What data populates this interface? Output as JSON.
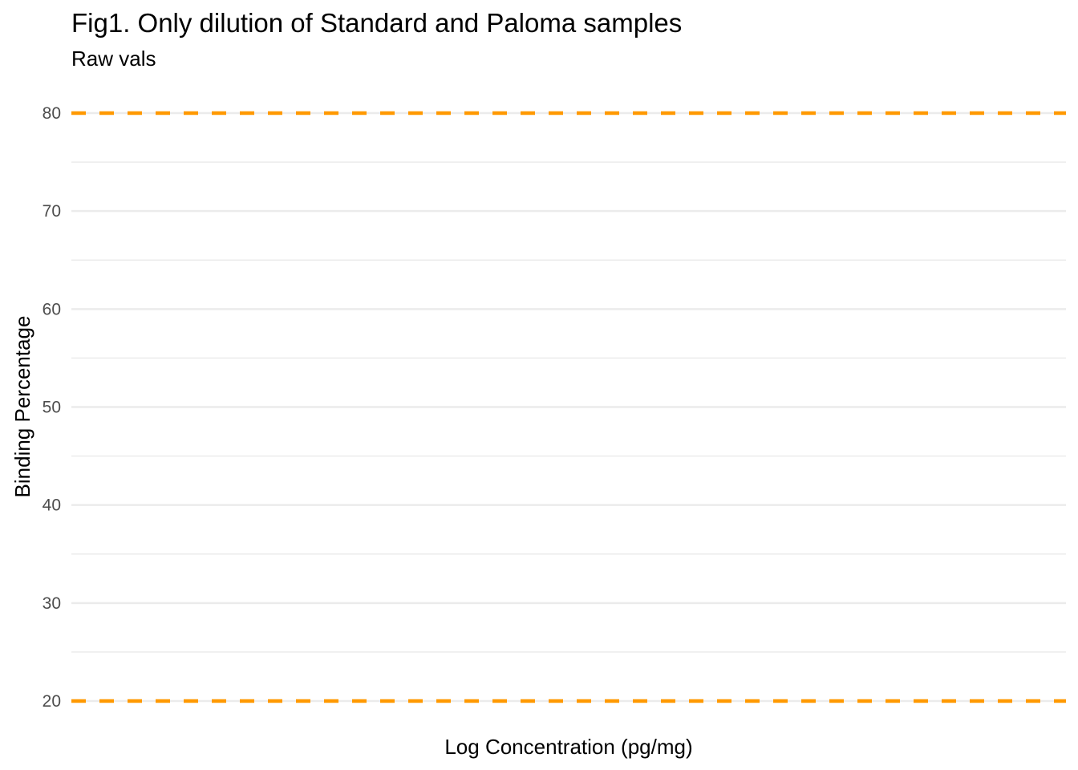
{
  "chart_data": {
    "type": "line",
    "title": "Fig1. Only dilution of Standard and Paloma samples",
    "subtitle": "Raw vals",
    "xlabel": "Log Concentration (pg/mg)",
    "ylabel": "Binding Percentage",
    "ylim": [
      20,
      80
    ],
    "yticks": [
      "20",
      "30",
      "40",
      "50",
      "60",
      "70",
      "80"
    ],
    "grid": true,
    "series": [],
    "reference_lines": [
      {
        "orientation": "horizontal",
        "y": 80,
        "color": "#FF9900",
        "style": "dashed"
      },
      {
        "orientation": "horizontal",
        "y": 20,
        "color": "#FF9900",
        "style": "dashed"
      }
    ],
    "colors": {
      "reference": "#FF9900",
      "grid": "#EBEBEB"
    }
  }
}
